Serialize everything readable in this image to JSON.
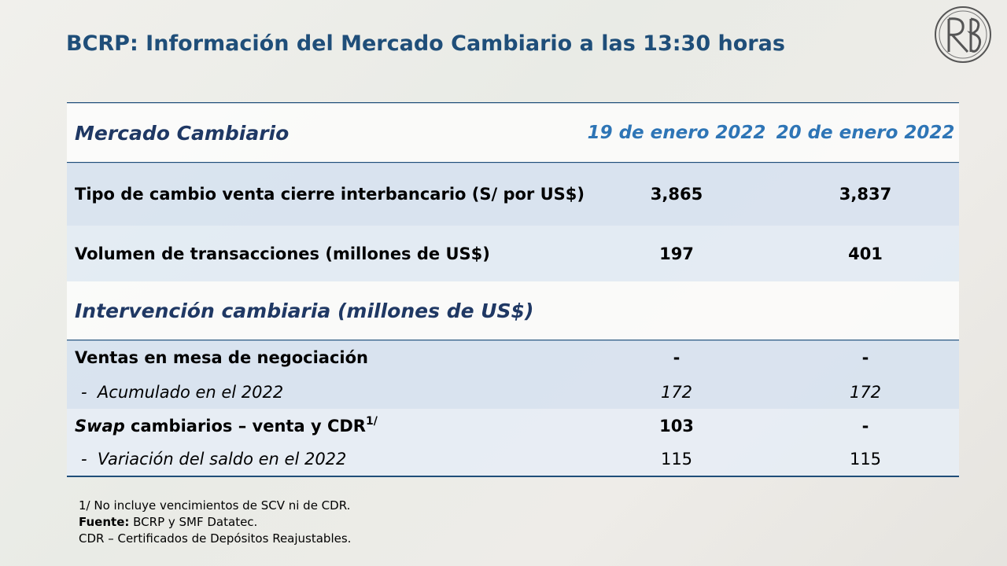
{
  "title": "BCRP: Información del Mercado Cambiario a las 13:30 horas",
  "table": {
    "header": [
      "Mercado Cambiario",
      "19 de enero 2022",
      "20 de enero 2022"
    ],
    "rows": [
      [
        "Tipo de cambio venta cierre interbancario (S/ por US$)",
        "3,865",
        "3,837"
      ],
      [
        "Volumen de transacciones (millones de US$)",
        "197",
        "401"
      ]
    ],
    "section": "Intervención cambiaria (millones de US$)",
    "section_rows": [
      [
        "Ventas en mesa de negociación",
        "-",
        "-"
      ],
      [
        "-  Acumulado en el 2022",
        "172",
        "172"
      ],
      [
        {
          "italic": "Swap",
          "text": " cambiarios – venta y CDR",
          "sup": "1/"
        },
        "103",
        "-"
      ],
      [
        "-  Variación del saldo en el 2022",
        "115",
        "115"
      ]
    ]
  },
  "notes": {
    "note1": "1/ No incluye vencimientos de SCV ni de CDR.",
    "source_label": "Fuente:",
    "source": " BCRP y SMF Datatec.",
    "note2": "CDR – Certificados de Depósitos Reajustables."
  }
}
